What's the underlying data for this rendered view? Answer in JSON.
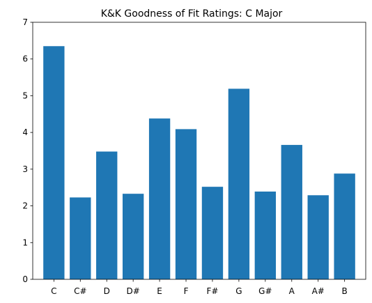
{
  "chart_data": {
    "type": "bar",
    "title": "K&K Goodness of Fit Ratings: C Major",
    "xlabel": "",
    "ylabel": "",
    "categories": [
      "C",
      "C#",
      "D",
      "D#",
      "E",
      "F",
      "F#",
      "G",
      "G#",
      "A",
      "A#",
      "B"
    ],
    "values": [
      6.35,
      2.23,
      3.48,
      2.33,
      4.38,
      4.09,
      2.52,
      5.19,
      2.39,
      3.66,
      2.29,
      2.88
    ],
    "ylim": [
      0,
      7
    ],
    "yticks": [
      "0",
      "1",
      "2",
      "3",
      "4",
      "5",
      "6",
      "7"
    ],
    "bar_color": "#1f77b4",
    "grid": false,
    "legend": "none"
  }
}
